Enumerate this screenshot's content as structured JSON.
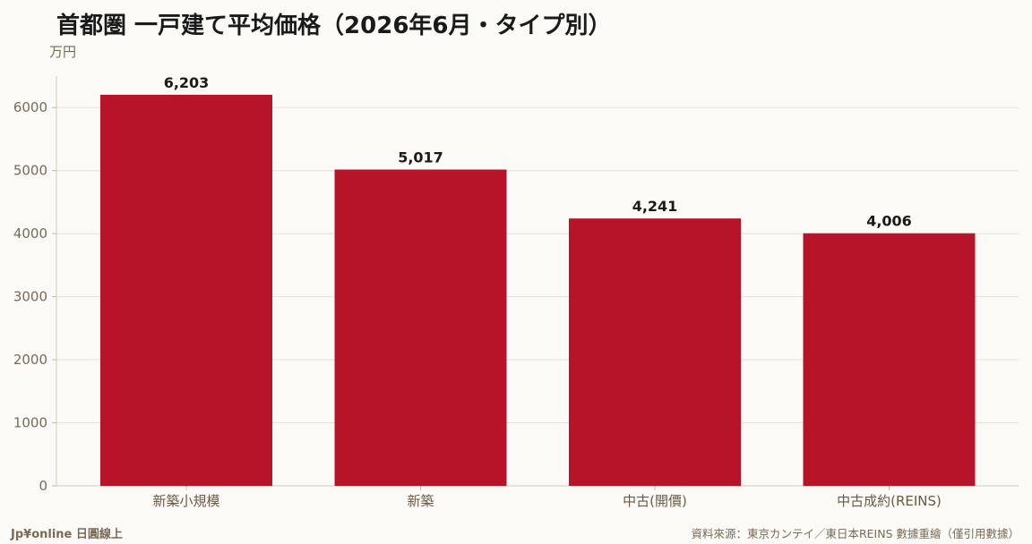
{
  "chart_data": {
    "type": "bar",
    "title": "首都圏 一戸建て平均価格（2026年6月・タイプ別）",
    "ylabel": "万円",
    "categories": [
      "新築小規模",
      "新築",
      "中古(開價)",
      "中古成約(REINS)"
    ],
    "values": [
      6203,
      5017,
      4241,
      4006
    ],
    "value_labels": [
      "6,203",
      "5,017",
      "4,241",
      "4,006"
    ],
    "ylim": [
      0,
      6500
    ],
    "yticks": [
      0,
      1000,
      2000,
      3000,
      4000,
      5000,
      6000
    ],
    "grid": true,
    "bar_color": "#b71429"
  },
  "footer": {
    "brand": "Jp¥online 日圓線上",
    "source": "資料來源：東京カンテイ／東日本REINS 數據重繪（僅引用數據）"
  }
}
